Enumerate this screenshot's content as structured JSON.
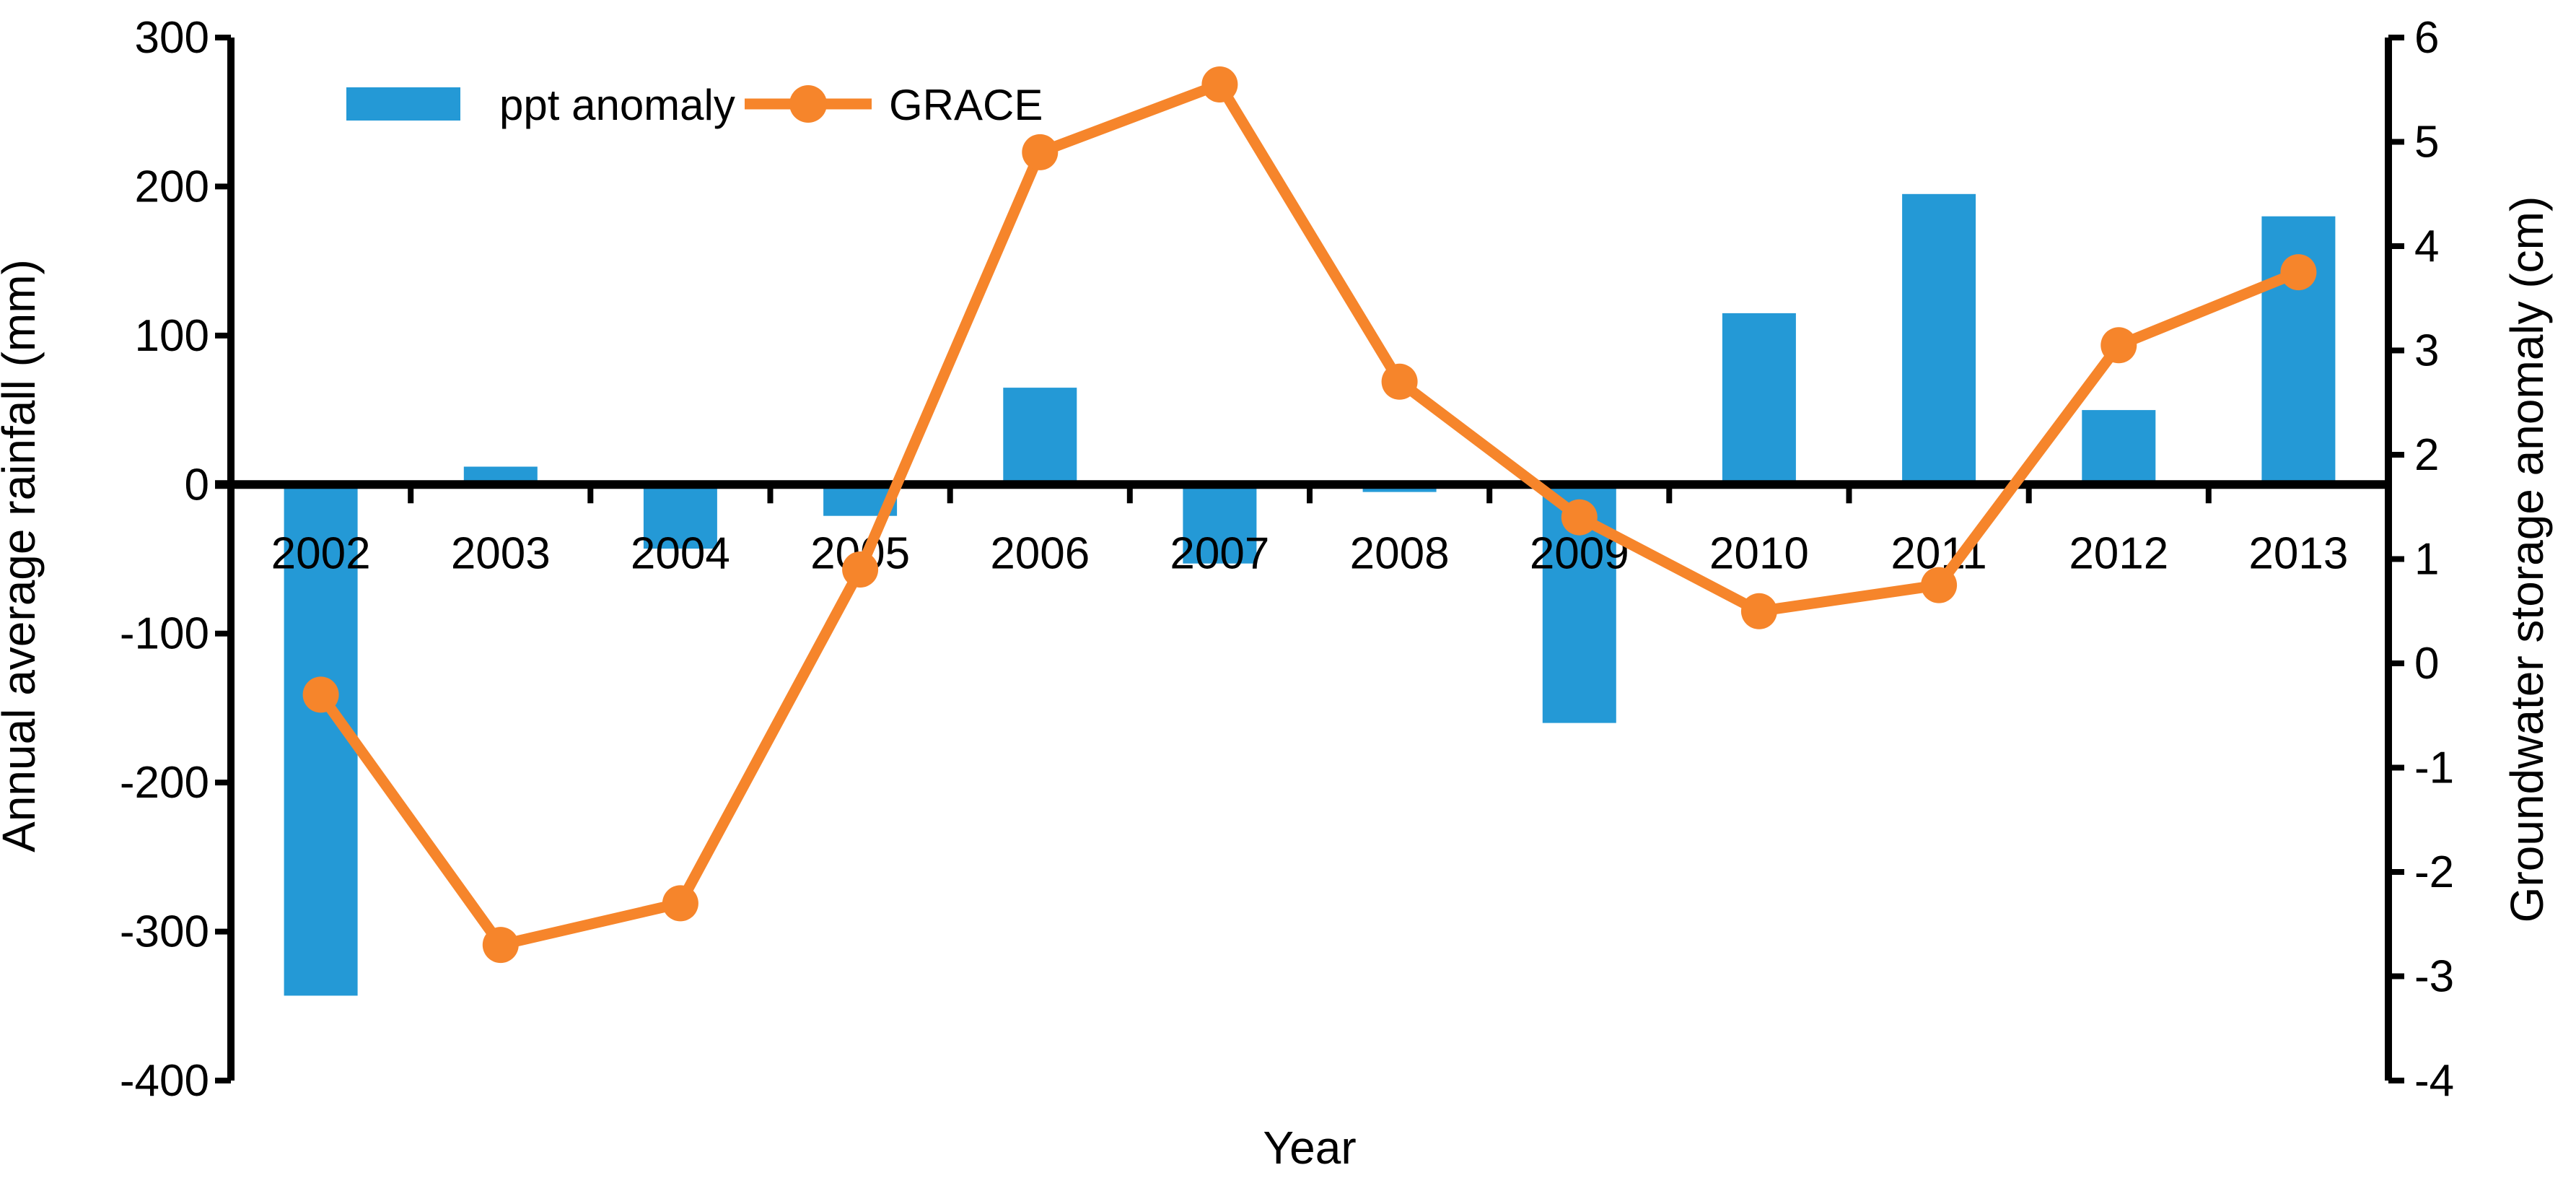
{
  "chart_data": {
    "type": "combo_bar_line",
    "title": "",
    "categories": [
      "2002",
      "2003",
      "2004",
      "2005",
      "2006",
      "2007",
      "2008",
      "2009",
      "2010",
      "2011",
      "2012",
      "2013"
    ],
    "series": [
      {
        "name": "ppt anomaly",
        "chart_type": "bar",
        "axis": "left",
        "color": "#2499D6",
        "values": [
          -343,
          12,
          -43,
          -21,
          65,
          -53,
          -5,
          -160,
          115,
          195,
          50,
          180
        ]
      },
      {
        "name": "GRACE",
        "chart_type": "line",
        "axis": "right",
        "color": "#F6852B",
        "marker": "circle",
        "values": [
          -0.3,
          -2.7,
          -2.3,
          0.9,
          4.9,
          5.55,
          2.7,
          1.4,
          0.5,
          0.75,
          3.05,
          3.75
        ]
      }
    ],
    "x_axis": {
      "label": "Year",
      "tick_position": "at_left_axis_zero"
    },
    "left_axis": {
      "label": "Annual average rainfall (mm)",
      "min": -400,
      "max": 300,
      "ticks": [
        300,
        200,
        100,
        0,
        -100,
        -200,
        -300,
        -400
      ]
    },
    "right_axis": {
      "label": "Groundwater storage anomaly (cm)",
      "min": -4,
      "max": 6,
      "ticks": [
        6,
        5,
        4,
        3,
        2,
        1,
        0,
        -1,
        -2,
        -3,
        -4
      ]
    },
    "legend": {
      "entries": [
        "ppt anomaly",
        "GRACE"
      ],
      "position": "top-left"
    },
    "grid": false,
    "background": "#FFFFFF",
    "axis_color": "#000000",
    "text_color": "#000000"
  }
}
